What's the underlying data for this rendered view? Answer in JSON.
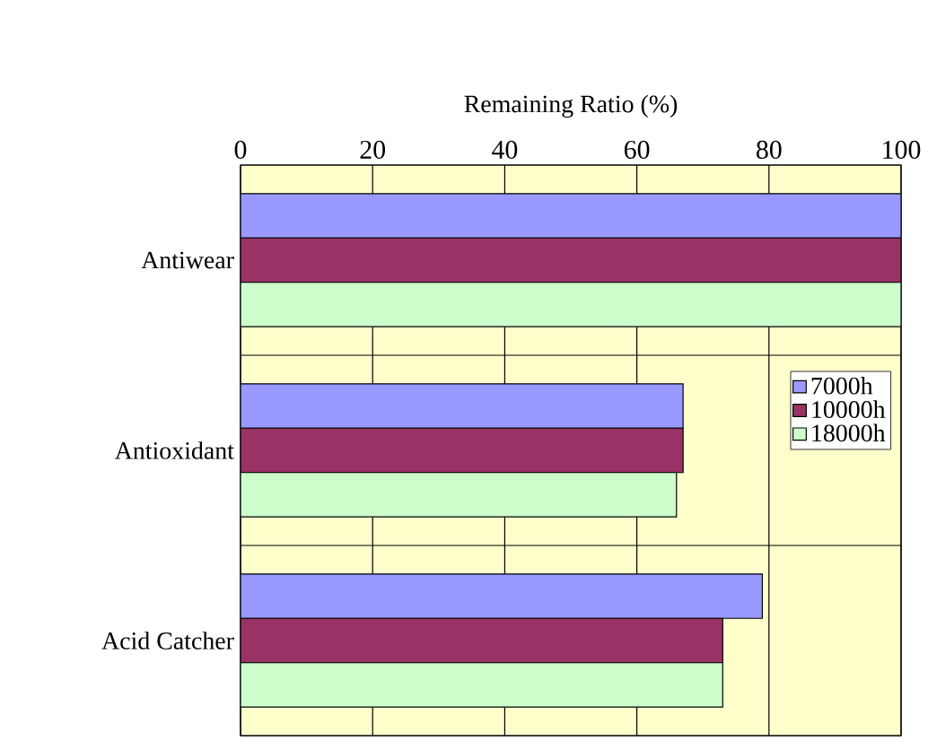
{
  "chart_data": {
    "type": "bar",
    "orientation": "horizontal",
    "xlabel": "Remaining Ratio (%)",
    "categories": [
      "Antiwear",
      "Antioxidant",
      "Acid Catcher"
    ],
    "series": [
      {
        "name": "7000h",
        "color": "#9999ff",
        "values": [
          100,
          67,
          79
        ]
      },
      {
        "name": "10000h",
        "color": "#993366",
        "values": [
          100,
          67,
          73
        ]
      },
      {
        "name": "18000h",
        "color": "#ccffcc",
        "values": [
          100,
          66,
          73
        ]
      }
    ],
    "xlim": [
      0,
      100
    ],
    "xticks": [
      0,
      20,
      40,
      60,
      80,
      100
    ],
    "grid": true,
    "legend": "right"
  }
}
